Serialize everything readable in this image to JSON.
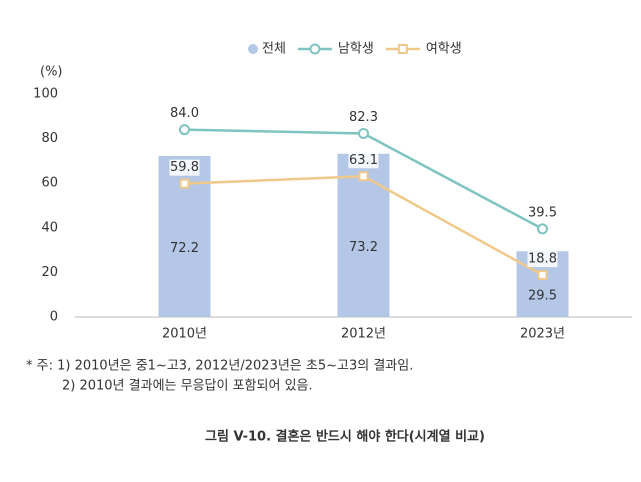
{
  "chart_data": {
    "type": "combo",
    "y_unit_label": "(%)",
    "categories": [
      "2010년",
      "2012년",
      "2023년"
    ],
    "series": [
      {
        "name": "전체",
        "type": "bar",
        "color": "#b4c7e7",
        "values": [
          72.2,
          73.2,
          29.5
        ],
        "value_labels": [
          "72.2",
          "73.2",
          "29.5"
        ]
      },
      {
        "name": "남학생",
        "type": "line",
        "color": "#7fc4c0",
        "values": [
          84,
          82.3,
          39.5
        ],
        "value_labels": [
          "84.0",
          "82.3",
          "39.5"
        ]
      },
      {
        "name": "여학생",
        "type": "line",
        "color": "#f0c98a",
        "values": [
          59.8,
          63.1,
          18.8
        ],
        "value_labels": [
          "59.8",
          "63.1",
          "18.8"
        ]
      }
    ],
    "ylim": [
      0,
      100
    ],
    "yticks": [
      0,
      20,
      40,
      60,
      80,
      100
    ],
    "grid": false,
    "legend": "top",
    "notes": [
      "* 주: 1) 2010년은 중1~고3, 2012년/2023년은 초5~고3의 결과임.",
      "2) 2010년 결과에는 무응답이 포함되어 있음."
    ],
    "caption": "그림 V-10. 결혼은 반드시 해야 한다(시계열 비교)"
  }
}
